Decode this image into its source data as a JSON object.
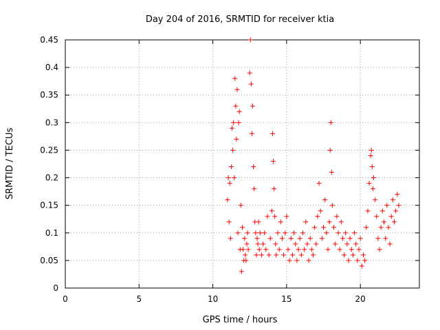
{
  "chart_data": {
    "type": "scatter",
    "title": "Day 204 of 2016, SRMTID for receiver ktia",
    "xlabel": "GPS time / hours",
    "ylabel": "SRMTID / TECUs",
    "xlim": [
      0,
      24
    ],
    "ylim": [
      0,
      0.45
    ],
    "xticks": [
      "0",
      "5",
      "10",
      "15",
      "20"
    ],
    "yticks": [
      "0",
      "0.05",
      "0.1",
      "0.15",
      "0.2",
      "0.25",
      "0.3",
      "0.35",
      "0.4",
      "0.45"
    ],
    "grid": true,
    "marker": "+",
    "color": "#ff0000",
    "series": [
      {
        "x": [
          11.0,
          11.05,
          11.1,
          11.15,
          11.2,
          11.25,
          11.3,
          11.35,
          11.4,
          11.45,
          11.5,
          11.55,
          11.6,
          11.65,
          11.7,
          11.75,
          11.8,
          11.85,
          11.9,
          11.95,
          12.0,
          12.05,
          12.1,
          12.15,
          12.2,
          12.25,
          12.3,
          12.35,
          12.4,
          12.5,
          12.55,
          12.6,
          12.65,
          12.7,
          12.75,
          12.8,
          12.85,
          12.9,
          12.95,
          13.0,
          13.05,
          13.1,
          13.15,
          13.2,
          13.3,
          13.4,
          13.5,
          13.6,
          13.7,
          13.8,
          13.9,
          14.0,
          14.05,
          14.1,
          14.15,
          14.2,
          14.25,
          14.3,
          14.4,
          14.5,
          14.6,
          14.7,
          14.8,
          14.9,
          15.0,
          15.1,
          15.2,
          15.3,
          15.4,
          15.5,
          15.6,
          15.7,
          15.8,
          15.9,
          16.0,
          16.1,
          16.2,
          16.3,
          16.4,
          16.5,
          16.6,
          16.7,
          16.8,
          16.9,
          17.0,
          17.1,
          17.2,
          17.3,
          17.4,
          17.5,
          17.6,
          17.7,
          17.8,
          17.9,
          17.95,
          18.0,
          18.05,
          18.1,
          18.2,
          18.3,
          18.4,
          18.5,
          18.6,
          18.7,
          18.8,
          18.9,
          19.0,
          19.1,
          19.2,
          19.3,
          19.4,
          19.5,
          19.6,
          19.7,
          19.8,
          19.9,
          20.0,
          20.1,
          20.2,
          20.3,
          20.4,
          20.5,
          20.6,
          20.7,
          20.75,
          20.8,
          20.85,
          20.9,
          21.0,
          21.1,
          21.2,
          21.3,
          21.4,
          21.5,
          21.6,
          21.7,
          21.8,
          21.9,
          22.0,
          22.1,
          22.2,
          22.3,
          22.4,
          22.5,
          22.6
        ],
        "y": [
          0.16,
          0.2,
          0.12,
          0.19,
          0.09,
          0.22,
          0.29,
          0.25,
          0.3,
          0.2,
          0.38,
          0.33,
          0.27,
          0.36,
          0.1,
          0.3,
          0.32,
          0.07,
          0.15,
          0.03,
          0.11,
          0.07,
          0.05,
          0.09,
          0.06,
          0.05,
          0.08,
          0.1,
          0.07,
          0.39,
          0.45,
          0.37,
          0.28,
          0.33,
          0.22,
          0.18,
          0.12,
          0.1,
          0.06,
          0.09,
          0.08,
          0.12,
          0.07,
          0.1,
          0.06,
          0.08,
          0.1,
          0.07,
          0.13,
          0.06,
          0.09,
          0.14,
          0.28,
          0.23,
          0.18,
          0.13,
          0.08,
          0.06,
          0.1,
          0.07,
          0.12,
          0.09,
          0.06,
          0.1,
          0.13,
          0.07,
          0.05,
          0.09,
          0.06,
          0.1,
          0.08,
          0.05,
          0.07,
          0.09,
          0.06,
          0.1,
          0.07,
          0.12,
          0.08,
          0.05,
          0.09,
          0.07,
          0.06,
          0.11,
          0.08,
          0.13,
          0.19,
          0.14,
          0.09,
          0.11,
          0.16,
          0.1,
          0.07,
          0.12,
          0.25,
          0.3,
          0.21,
          0.15,
          0.11,
          0.08,
          0.13,
          0.1,
          0.07,
          0.12,
          0.09,
          0.06,
          0.1,
          0.08,
          0.05,
          0.09,
          0.07,
          0.06,
          0.1,
          0.08,
          0.05,
          0.07,
          0.09,
          0.04,
          0.06,
          0.05,
          0.11,
          0.14,
          0.19,
          0.24,
          0.25,
          0.22,
          0.18,
          0.2,
          0.16,
          0.13,
          0.09,
          0.07,
          0.11,
          0.14,
          0.12,
          0.09,
          0.15,
          0.11,
          0.08,
          0.13,
          0.16,
          0.12,
          0.14,
          0.17,
          0.15
        ]
      }
    ]
  }
}
